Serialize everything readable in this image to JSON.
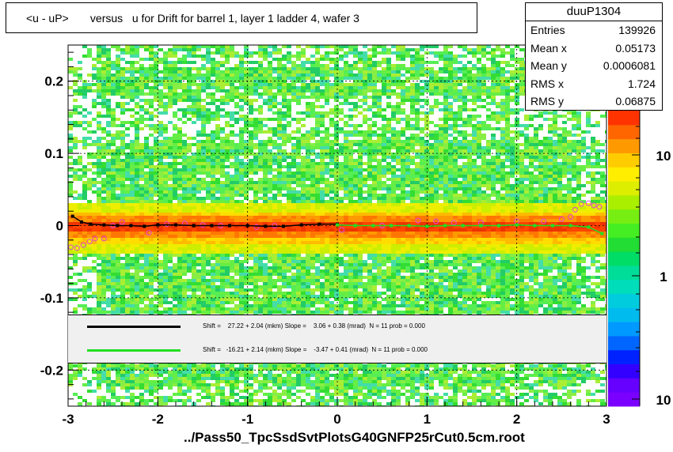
{
  "title": "<u - uP>       versus   u for Drift for barrel 1, layer 1 ladder 4, wafer 3",
  "stats": {
    "name": "duuP1304",
    "rows": [
      {
        "label": "Entries",
        "value": "139926"
      },
      {
        "label": "Mean x",
        "value": "0.05173"
      },
      {
        "label": "Mean y",
        "value": "0.0006081"
      },
      {
        "label": "RMS x",
        "value": "1.724"
      },
      {
        "label": "RMS y",
        "value": "0.06875"
      }
    ]
  },
  "fits": [
    {
      "color": "#000000",
      "text": "Shift =    27.22 + 2.04 (mkm) Slope =    3.06 + 0.38 (mrad)  N = 11 prob = 0.000"
    },
    {
      "color": "#22dd22",
      "text": "Shift =   -16.21 + 2.14 (mkm) Slope =    -3.47 + 0.41 (mrad)  N = 11 prob = 0.000"
    }
  ],
  "footer": "../Pass50_TpcSsdSvtPlotsG40GNFP25rCut0.5cm.root",
  "chart_data": {
    "type": "heatmap",
    "x_ticks": [
      "-3",
      "-2",
      "-1",
      "0",
      "1",
      "2",
      "3"
    ],
    "y_ticks": [
      "-0.2",
      "-0.1",
      "0",
      "0.1",
      "0.2"
    ],
    "xlim": [
      -3,
      3
    ],
    "ylim": [
      -0.25,
      0.25
    ],
    "z_ticks": [
      "10",
      "1",
      "10"
    ],
    "grid": true,
    "profile_black": {
      "x": [
        -2.95,
        -2.85,
        -2.75,
        -2.6,
        -2.45,
        -2.3,
        -2.15,
        -2.0,
        -1.8,
        -1.6,
        -1.4,
        -1.2,
        -1.0,
        -0.8,
        -0.6,
        -0.4,
        -0.2,
        0.0
      ],
      "y": [
        0.013,
        0.005,
        0.002,
        0.001,
        0.0,
        0.0,
        -0.001,
        0.001,
        0.001,
        0.0,
        0.0,
        0.0,
        0.0,
        -0.001,
        -0.001,
        0.001,
        0.002,
        0.002
      ]
    },
    "profile_green": {
      "x": [
        0.0,
        0.2,
        0.4,
        0.6,
        0.8,
        1.0,
        1.2,
        1.4,
        1.6,
        1.8,
        2.0,
        2.2,
        2.4,
        2.6,
        2.8,
        2.95
      ],
      "y": [
        0.001,
        0.0,
        0.0,
        0.0,
        0.0,
        -0.001,
        0.0,
        0.0,
        0.0,
        0.0,
        0.001,
        0.0,
        0.0,
        0.0,
        -0.002,
        -0.011
      ]
    },
    "profile_open_points": {
      "x": [
        -2.97,
        -2.9,
        -2.83,
        -2.76,
        -2.7,
        -2.6,
        -2.5,
        -2.4,
        -2.1,
        -1.9,
        -1.7,
        -1.5,
        -1.3,
        -0.9,
        -0.7,
        0.05,
        0.5,
        0.9,
        1.1,
        1.3,
        1.6,
        2.0,
        2.3,
        2.5,
        2.6,
        2.65,
        2.72,
        2.8,
        2.86,
        2.92
      ],
      "y": [
        -0.03,
        -0.031,
        -0.027,
        -0.022,
        -0.018,
        -0.018,
        0.0,
        0.005,
        -0.01,
        0.002,
        0.003,
        0.001,
        0.0,
        -0.002,
        0.0,
        -0.006,
        0.0,
        0.007,
        0.006,
        0.004,
        0.004,
        0.006,
        0.006,
        0.009,
        0.012,
        0.022,
        0.03,
        0.031,
        0.028,
        0.026
      ]
    }
  }
}
